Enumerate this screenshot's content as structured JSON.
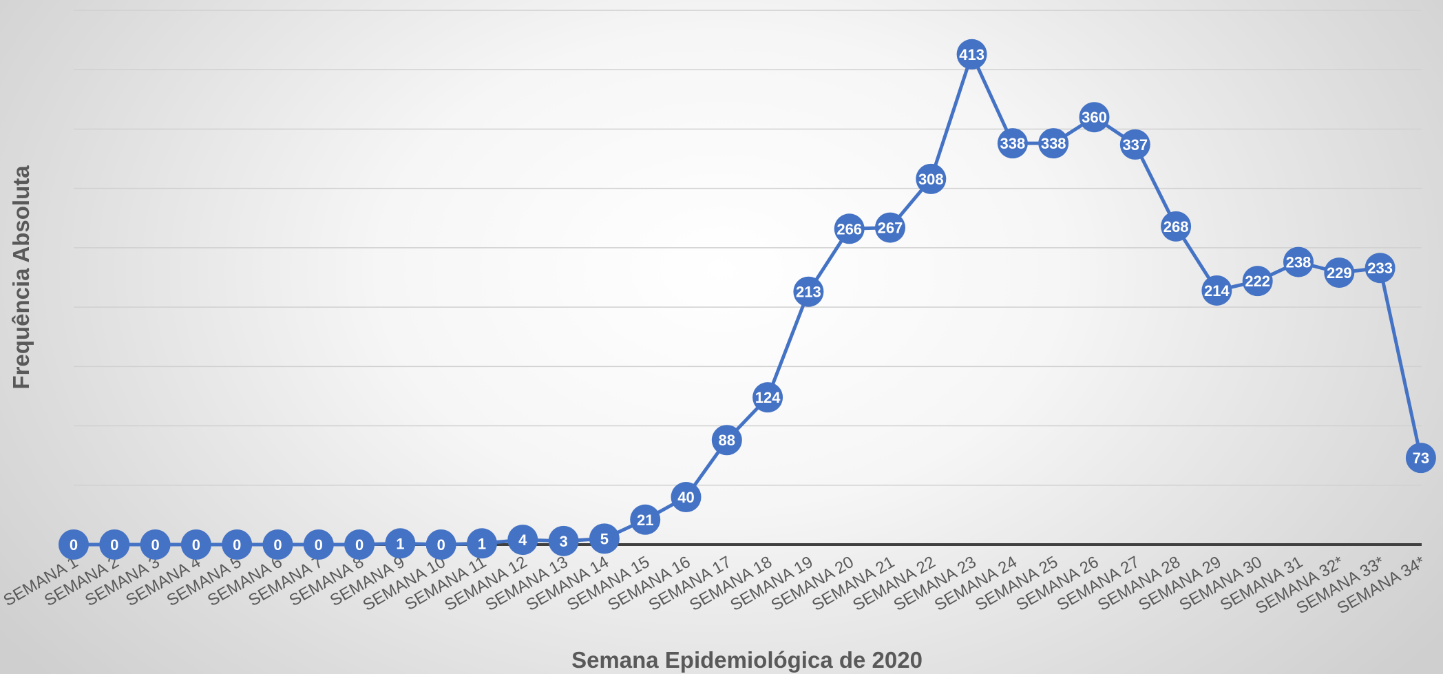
{
  "chart_data": {
    "type": "line",
    "xlabel": "Semana Epidemiológica de 2020",
    "ylabel": "Frequência Absoluta",
    "categories": [
      "SEMANA 1",
      "SEMANA 2",
      "SEMANA 3",
      "SEMANA 4",
      "SEMANA 5",
      "SEMANA 6",
      "SEMANA 7",
      "SEMANA 8",
      "SEMANA 9",
      "SEMANA 10",
      "SEMANA 11",
      "SEMANA 12",
      "SEMANA 13",
      "SEMANA 14",
      "SEMANA 15",
      "SEMANA 16",
      "SEMANA 17",
      "SEMANA 18",
      "SEMANA 19",
      "SEMANA 20",
      "SEMANA 21",
      "SEMANA 22",
      "SEMANA 23",
      "SEMANA 24",
      "SEMANA 25",
      "SEMANA 26",
      "SEMANA 27",
      "SEMANA 28",
      "SEMANA 29",
      "SEMANA 30",
      "SEMANA 31",
      "SEMANA 32*",
      "SEMANA 33*",
      "SEMANA 34*"
    ],
    "series": [
      {
        "values": [
          0,
          0,
          0,
          0,
          0,
          0,
          0,
          0,
          1,
          0,
          1,
          4,
          3,
          5,
          21,
          40,
          88,
          124,
          213,
          266,
          267,
          308,
          413,
          338,
          338,
          360,
          337,
          268,
          214,
          222,
          238,
          229,
          233,
          73
        ],
        "color": "#4472C4"
      }
    ],
    "ylim": [
      0,
      450
    ],
    "grid": true,
    "legend": "none"
  }
}
